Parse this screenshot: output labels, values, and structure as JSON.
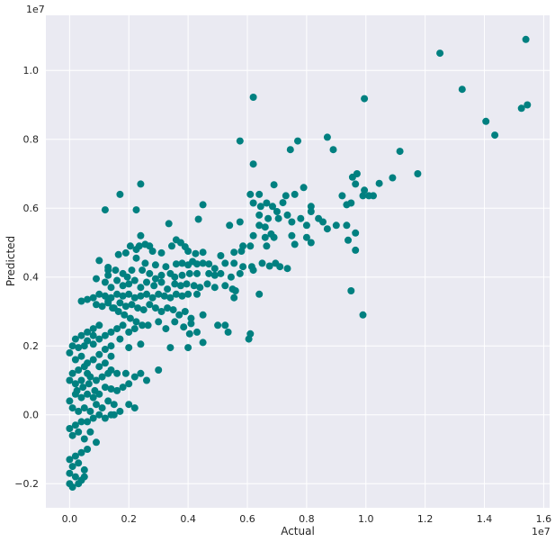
{
  "chart_data": {
    "type": "scatter",
    "title": "",
    "xlabel": "Actual",
    "ylabel": "Predicted",
    "x_offset_text": "1e7",
    "y_offset_text": "1e7",
    "xlim": [
      -0.08,
      1.62
    ],
    "ylim": [
      -0.27,
      1.16
    ],
    "xticks": [
      0.0,
      0.2,
      0.4,
      0.6,
      0.8,
      1.0,
      1.2,
      1.4,
      1.6
    ],
    "xtick_labels": [
      "0.0",
      "0.2",
      "0.4",
      "0.6",
      "0.8",
      "1.0",
      "1.2",
      "1.4",
      "1.6"
    ],
    "yticks": [
      -0.2,
      0.0,
      0.2,
      0.4,
      0.6,
      0.8,
      1.0
    ],
    "ytick_labels": [
      "−0.2",
      "0.0",
      "0.2",
      "0.4",
      "0.6",
      "0.8",
      "1.0"
    ],
    "grid": true,
    "background": "#eaeaf2",
    "point_color": "#008080",
    "points": [
      [
        1.54,
        1.09
      ],
      [
        1.25,
        1.05
      ],
      [
        1.325,
        0.945
      ],
      [
        1.545,
        0.9
      ],
      [
        1.525,
        0.89
      ],
      [
        1.405,
        0.852
      ],
      [
        1.435,
        0.812
      ],
      [
        0.62,
        0.922
      ],
      [
        0.995,
        0.918
      ],
      [
        0.575,
        0.795
      ],
      [
        0.77,
        0.795
      ],
      [
        0.87,
        0.806
      ],
      [
        0.745,
        0.77
      ],
      [
        0.89,
        0.77
      ],
      [
        1.115,
        0.765
      ],
      [
        0.62,
        0.728
      ],
      [
        1.175,
        0.7
      ],
      [
        0.97,
        0.7
      ],
      [
        0.955,
        0.69
      ],
      [
        1.09,
        0.688
      ],
      [
        1.045,
        0.672
      ],
      [
        0.965,
        0.67
      ],
      [
        0.995,
        0.652
      ],
      [
        0.99,
        0.636
      ],
      [
        1.025,
        0.636
      ],
      [
        1.01,
        0.636
      ],
      [
        0.92,
        0.636
      ],
      [
        0.935,
        0.61
      ],
      [
        0.95,
        0.615
      ],
      [
        0.24,
        0.67
      ],
      [
        0.17,
        0.64
      ],
      [
        0.69,
        0.668
      ],
      [
        0.61,
        0.64
      ],
      [
        0.64,
        0.64
      ],
      [
        0.73,
        0.636
      ],
      [
        0.76,
        0.64
      ],
      [
        0.79,
        0.66
      ],
      [
        0.72,
        0.616
      ],
      [
        0.815,
        0.605
      ],
      [
        0.815,
        0.59
      ],
      [
        0.45,
        0.61
      ],
      [
        0.12,
        0.595
      ],
      [
        0.225,
        0.595
      ],
      [
        0.62,
        0.615
      ],
      [
        0.645,
        0.605
      ],
      [
        0.665,
        0.615
      ],
      [
        0.685,
        0.605
      ],
      [
        0.64,
        0.58
      ],
      [
        0.67,
        0.57
      ],
      [
        0.7,
        0.59
      ],
      [
        0.705,
        0.57
      ],
      [
        0.735,
        0.58
      ],
      [
        0.75,
        0.56
      ],
      [
        0.78,
        0.57
      ],
      [
        0.8,
        0.55
      ],
      [
        0.84,
        0.57
      ],
      [
        0.855,
        0.56
      ],
      [
        0.87,
        0.54
      ],
      [
        0.9,
        0.55
      ],
      [
        0.935,
        0.55
      ],
      [
        0.965,
        0.528
      ],
      [
        0.94,
        0.507
      ],
      [
        0.335,
        0.555
      ],
      [
        0.435,
        0.568
      ],
      [
        0.54,
        0.55
      ],
      [
        0.575,
        0.56
      ],
      [
        0.64,
        0.55
      ],
      [
        0.66,
        0.545
      ],
      [
        0.68,
        0.525
      ],
      [
        0.62,
        0.52
      ],
      [
        0.66,
        0.515
      ],
      [
        0.69,
        0.515
      ],
      [
        0.75,
        0.52
      ],
      [
        0.8,
        0.515
      ],
      [
        0.815,
        0.5
      ],
      [
        0.76,
        0.495
      ],
      [
        0.665,
        0.49
      ],
      [
        0.61,
        0.49
      ],
      [
        0.585,
        0.49
      ],
      [
        0.58,
        0.475
      ],
      [
        0.555,
        0.472
      ],
      [
        0.51,
        0.462
      ],
      [
        0.45,
        0.472
      ],
      [
        0.425,
        0.468
      ],
      [
        0.4,
        0.475
      ],
      [
        0.36,
        0.508
      ],
      [
        0.375,
        0.5
      ],
      [
        0.39,
        0.488
      ],
      [
        0.345,
        0.49
      ],
      [
        0.31,
        0.47
      ],
      [
        0.28,
        0.475
      ],
      [
        0.255,
        0.495
      ],
      [
        0.235,
        0.49
      ],
      [
        0.24,
        0.52
      ],
      [
        0.225,
        0.48
      ],
      [
        0.19,
        0.47
      ],
      [
        0.165,
        0.465
      ],
      [
        0.1,
        0.448
      ],
      [
        0.13,
        0.428
      ],
      [
        0.13,
        0.42
      ],
      [
        0.27,
        0.49
      ],
      [
        0.205,
        0.49
      ],
      [
        0.225,
        0.455
      ],
      [
        0.255,
        0.44
      ],
      [
        0.29,
        0.435
      ],
      [
        0.325,
        0.43
      ],
      [
        0.36,
        0.438
      ],
      [
        0.38,
        0.44
      ],
      [
        0.4,
        0.435
      ],
      [
        0.415,
        0.445
      ],
      [
        0.43,
        0.438
      ],
      [
        0.45,
        0.44
      ],
      [
        0.47,
        0.438
      ],
      [
        0.49,
        0.425
      ],
      [
        0.525,
        0.44
      ],
      [
        0.555,
        0.44
      ],
      [
        0.585,
        0.43
      ],
      [
        0.615,
        0.43
      ],
      [
        0.62,
        0.42
      ],
      [
        0.65,
        0.44
      ],
      [
        0.675,
        0.432
      ],
      [
        0.695,
        0.44
      ],
      [
        0.71,
        0.43
      ],
      [
        0.735,
        0.425
      ],
      [
        0.545,
        0.4
      ],
      [
        0.575,
        0.41
      ],
      [
        0.51,
        0.41
      ],
      [
        0.49,
        0.405
      ],
      [
        0.47,
        0.41
      ],
      [
        0.43,
        0.41
      ],
      [
        0.405,
        0.41
      ],
      [
        0.38,
        0.405
      ],
      [
        0.355,
        0.4
      ],
      [
        0.34,
        0.41
      ],
      [
        0.31,
        0.405
      ],
      [
        0.29,
        0.395
      ],
      [
        0.27,
        0.41
      ],
      [
        0.245,
        0.42
      ],
      [
        0.21,
        0.42
      ],
      [
        0.195,
        0.4
      ],
      [
        0.18,
        0.41
      ],
      [
        0.155,
        0.42
      ],
      [
        0.13,
        0.405
      ],
      [
        0.09,
        0.395
      ],
      [
        0.12,
        0.385
      ],
      [
        0.14,
        0.37
      ],
      [
        0.16,
        0.39
      ],
      [
        0.18,
        0.375
      ],
      [
        0.2,
        0.38
      ],
      [
        0.22,
        0.39
      ],
      [
        0.24,
        0.37
      ],
      [
        0.26,
        0.385
      ],
      [
        0.285,
        0.375
      ],
      [
        0.31,
        0.385
      ],
      [
        0.33,
        0.365
      ],
      [
        0.355,
        0.38
      ],
      [
        0.375,
        0.375
      ],
      [
        0.395,
        0.38
      ],
      [
        0.42,
        0.375
      ],
      [
        0.44,
        0.37
      ],
      [
        0.465,
        0.38
      ],
      [
        0.49,
        0.37
      ],
      [
        0.525,
        0.375
      ],
      [
        0.55,
        0.365
      ],
      [
        0.555,
        0.34
      ],
      [
        0.56,
        0.36
      ],
      [
        0.64,
        0.35
      ],
      [
        0.43,
        0.35
      ],
      [
        0.4,
        0.35
      ],
      [
        0.38,
        0.345
      ],
      [
        0.36,
        0.35
      ],
      [
        0.34,
        0.34
      ],
      [
        0.32,
        0.345
      ],
      [
        0.3,
        0.35
      ],
      [
        0.28,
        0.34
      ],
      [
        0.26,
        0.35
      ],
      [
        0.24,
        0.345
      ],
      [
        0.22,
        0.34
      ],
      [
        0.2,
        0.35
      ],
      [
        0.18,
        0.345
      ],
      [
        0.16,
        0.35
      ],
      [
        0.14,
        0.34
      ],
      [
        0.12,
        0.345
      ],
      [
        0.1,
        0.35
      ],
      [
        0.08,
        0.34
      ],
      [
        0.06,
        0.335
      ],
      [
        0.04,
        0.33
      ],
      [
        0.09,
        0.32
      ],
      [
        0.11,
        0.315
      ],
      [
        0.13,
        0.325
      ],
      [
        0.15,
        0.31
      ],
      [
        0.17,
        0.325
      ],
      [
        0.19,
        0.315
      ],
      [
        0.21,
        0.32
      ],
      [
        0.23,
        0.31
      ],
      [
        0.25,
        0.305
      ],
      [
        0.27,
        0.32
      ],
      [
        0.29,
        0.31
      ],
      [
        0.31,
        0.3
      ],
      [
        0.33,
        0.31
      ],
      [
        0.35,
        0.305
      ],
      [
        0.37,
        0.29
      ],
      [
        0.39,
        0.3
      ],
      [
        0.41,
        0.28
      ],
      [
        0.45,
        0.29
      ],
      [
        0.95,
        0.36
      ],
      [
        0.99,
        0.29
      ],
      [
        0.965,
        0.478
      ],
      [
        0.265,
        0.26
      ],
      [
        0.3,
        0.27
      ],
      [
        0.325,
        0.25
      ],
      [
        0.355,
        0.27
      ],
      [
        0.385,
        0.255
      ],
      [
        0.41,
        0.265
      ],
      [
        0.405,
        0.235
      ],
      [
        0.43,
        0.24
      ],
      [
        0.5,
        0.26
      ],
      [
        0.525,
        0.26
      ],
      [
        0.535,
        0.24
      ],
      [
        0.605,
        0.22
      ],
      [
        0.61,
        0.235
      ],
      [
        0.45,
        0.21
      ],
      [
        0.4,
        0.195
      ],
      [
        0.34,
        0.195
      ],
      [
        0.24,
        0.205
      ],
      [
        0.2,
        0.195
      ],
      [
        0.17,
        0.22
      ],
      [
        0.14,
        0.2
      ],
      [
        0.12,
        0.19
      ],
      [
        0.14,
        0.17
      ],
      [
        0.1,
        0.175
      ],
      [
        0.08,
        0.205
      ],
      [
        0.06,
        0.215
      ],
      [
        0.05,
        0.2
      ],
      [
        0.03,
        0.195
      ],
      [
        0.01,
        0.2
      ],
      [
        0.0,
        0.18
      ],
      [
        0.02,
        0.16
      ],
      [
        0.04,
        0.17
      ],
      [
        0.06,
        0.15
      ],
      [
        0.08,
        0.16
      ],
      [
        0.1,
        0.14
      ],
      [
        0.12,
        0.15
      ],
      [
        0.14,
        0.13
      ],
      [
        0.16,
        0.12
      ],
      [
        0.19,
        0.12
      ],
      [
        0.22,
        0.11
      ],
      [
        0.24,
        0.12
      ],
      [
        0.26,
        0.1
      ],
      [
        0.3,
        0.13
      ],
      [
        0.2,
        0.09
      ],
      [
        0.18,
        0.08
      ],
      [
        0.16,
        0.07
      ],
      [
        0.14,
        0.075
      ],
      [
        0.12,
        0.08
      ],
      [
        0.1,
        0.06
      ],
      [
        0.08,
        0.05
      ],
      [
        0.06,
        0.06
      ],
      [
        0.04,
        0.05
      ],
      [
        0.02,
        0.06
      ],
      [
        0.0,
        0.04
      ],
      [
        0.01,
        0.02
      ],
      [
        0.03,
        0.01
      ],
      [
        0.05,
        0.02
      ],
      [
        0.07,
        0.01
      ],
      [
        0.09,
        0.03
      ],
      [
        0.11,
        0.02
      ],
      [
        0.13,
        0.04
      ],
      [
        0.15,
        0.03
      ],
      [
        0.17,
        0.01
      ],
      [
        0.2,
        0.03
      ],
      [
        0.22,
        0.02
      ],
      [
        0.14,
        0.0
      ],
      [
        0.12,
        -0.01
      ],
      [
        0.1,
        0.0
      ],
      [
        0.08,
        -0.01
      ],
      [
        0.06,
        -0.02
      ],
      [
        0.04,
        -0.02
      ],
      [
        0.02,
        -0.03
      ],
      [
        0.0,
        -0.04
      ],
      [
        0.01,
        -0.06
      ],
      [
        0.03,
        -0.05
      ],
      [
        0.05,
        -0.07
      ],
      [
        0.07,
        -0.05
      ],
      [
        0.09,
        -0.08
      ],
      [
        0.06,
        -0.1
      ],
      [
        0.04,
        -0.11
      ],
      [
        0.02,
        -0.12
      ],
      [
        0.0,
        -0.13
      ],
      [
        0.01,
        -0.15
      ],
      [
        0.03,
        -0.14
      ],
      [
        0.05,
        -0.16
      ],
      [
        0.0,
        -0.17
      ],
      [
        0.02,
        -0.18
      ],
      [
        0.04,
        -0.19
      ],
      [
        0.0,
        -0.2
      ],
      [
        0.01,
        -0.21
      ],
      [
        0.03,
        -0.2
      ],
      [
        0.05,
        -0.18
      ],
      [
        0.15,
        0.0
      ],
      [
        0.13,
        0.33
      ],
      [
        0.145,
        0.31
      ],
      [
        0.165,
        0.3
      ],
      [
        0.185,
        0.29
      ],
      [
        0.205,
        0.28
      ],
      [
        0.225,
        0.27
      ],
      [
        0.245,
        0.26
      ],
      [
        0.1,
        0.26
      ],
      [
        0.08,
        0.25
      ],
      [
        0.06,
        0.24
      ],
      [
        0.04,
        0.23
      ],
      [
        0.02,
        0.22
      ],
      [
        0.08,
        0.23
      ],
      [
        0.1,
        0.22
      ],
      [
        0.12,
        0.23
      ],
      [
        0.14,
        0.24
      ],
      [
        0.16,
        0.25
      ],
      [
        0.18,
        0.26
      ],
      [
        0.2,
        0.24
      ],
      [
        0.22,
        0.25
      ],
      [
        0.06,
        0.12
      ],
      [
        0.04,
        0.1
      ],
      [
        0.02,
        0.09
      ],
      [
        0.0,
        0.1
      ],
      [
        0.01,
        0.12
      ],
      [
        0.03,
        0.13
      ],
      [
        0.05,
        0.14
      ],
      [
        0.07,
        0.11
      ],
      [
        0.09,
        0.1
      ],
      [
        0.11,
        0.11
      ],
      [
        0.13,
        0.12
      ],
      [
        0.025,
        0.07
      ],
      [
        0.045,
        0.08
      ],
      [
        0.065,
        0.09
      ],
      [
        0.085,
        0.07
      ]
    ]
  }
}
